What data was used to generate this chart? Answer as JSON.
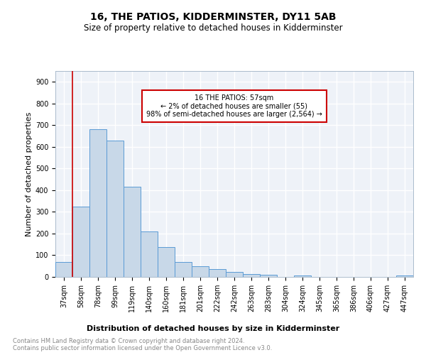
{
  "title": "16, THE PATIOS, KIDDERMINSTER, DY11 5AB",
  "subtitle": "Size of property relative to detached houses in Kidderminster",
  "xlabel": "Distribution of detached houses by size in Kidderminster",
  "ylabel": "Number of detached properties",
  "categories": [
    "37sqm",
    "58sqm",
    "78sqm",
    "99sqm",
    "119sqm",
    "140sqm",
    "160sqm",
    "181sqm",
    "201sqm",
    "222sqm",
    "242sqm",
    "263sqm",
    "283sqm",
    "304sqm",
    "324sqm",
    "345sqm",
    "365sqm",
    "386sqm",
    "406sqm",
    "427sqm",
    "447sqm"
  ],
  "values": [
    70,
    325,
    680,
    630,
    415,
    210,
    138,
    70,
    50,
    35,
    22,
    12,
    9,
    0,
    8,
    0,
    0,
    0,
    0,
    0,
    8
  ],
  "bar_color": "#c8d8e8",
  "bar_edge_color": "#5b9bd5",
  "annotation_line1": "16 THE PATIOS: 57sqm",
  "annotation_line2": "← 2% of detached houses are smaller (55)",
  "annotation_line3": "98% of semi-detached houses are larger (2,564) →",
  "annotation_box_color": "#cc0000",
  "vertical_line_color": "#cc0000",
  "vertical_line_bin": 1,
  "ylim": [
    0,
    950
  ],
  "yticks": [
    0,
    100,
    200,
    300,
    400,
    500,
    600,
    700,
    800,
    900
  ],
  "background_color": "#eef2f8",
  "grid_color": "#ffffff",
  "footer_text": "Contains HM Land Registry data © Crown copyright and database right 2024.\nContains public sector information licensed under the Open Government Licence v3.0.",
  "title_fontsize": 10,
  "subtitle_fontsize": 8.5,
  "xlabel_fontsize": 8,
  "ylabel_fontsize": 8,
  "tick_fontsize": 7,
  "annotation_fontsize": 7,
  "footer_fontsize": 6
}
